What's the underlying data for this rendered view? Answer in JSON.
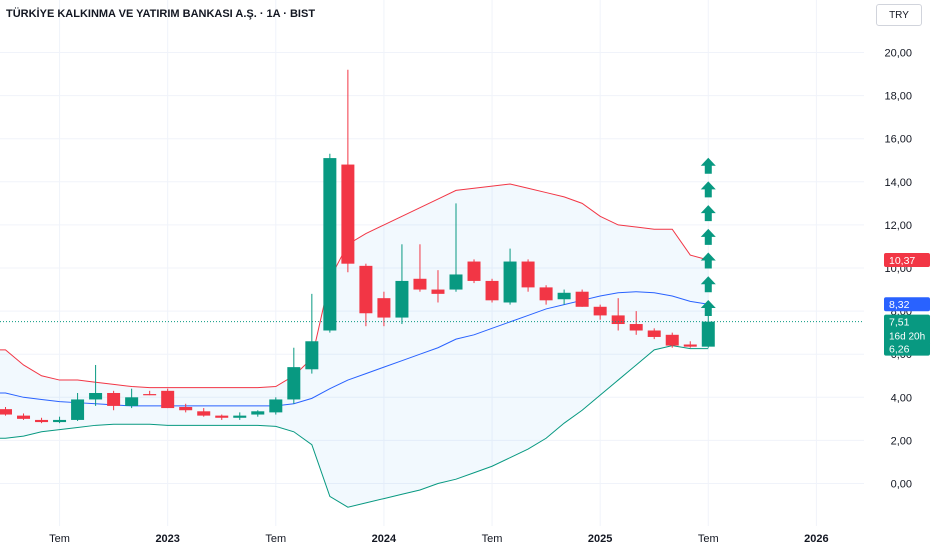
{
  "header": {
    "symbol_title": "TÜRKİYE KALKINMA VE YATIRIM BANKASI A.Ş. · 1A · BIST",
    "currency": "TRY"
  },
  "colors": {
    "up": "#089981",
    "down": "#f23645",
    "basis": "#2962ff",
    "upper_band": "#f23645",
    "lower_band": "#089981",
    "band_fill": "#2196f3",
    "arrow": "#089981",
    "grid": "#f0f3fa",
    "axis_text": "#131722",
    "price_line": "#089981"
  },
  "chart_data": {
    "type": "candlestick",
    "interval": "1M",
    "ylim": [
      -1.2,
      21.5
    ],
    "y_ticks": [
      0,
      2,
      4,
      6,
      8,
      10,
      12,
      14,
      16,
      18,
      20
    ],
    "y_tick_labels": [
      "0,00",
      "2,00",
      "4,00",
      "6,00",
      "8,00",
      "10,00",
      "12,00",
      "14,00",
      "16,00",
      "18,00",
      "20,00"
    ],
    "x_ticks": [
      {
        "index": 3,
        "label": "Tem"
      },
      {
        "index": 9,
        "label": "2023"
      },
      {
        "index": 15,
        "label": "Tem"
      },
      {
        "index": 21,
        "label": "2024"
      },
      {
        "index": 27,
        "label": "Tem"
      },
      {
        "index": 33,
        "label": "2025"
      },
      {
        "index": 39,
        "label": "Tem"
      },
      {
        "index": 45,
        "label": "2026"
      }
    ],
    "x_range": [
      0.0,
      47.8
    ],
    "grid": true,
    "candles": [
      {
        "o": 3.45,
        "h": 3.55,
        "l": 3.15,
        "c": 3.2
      },
      {
        "o": 3.15,
        "h": 3.25,
        "l": 2.95,
        "c": 3.0
      },
      {
        "o": 2.95,
        "h": 3.05,
        "l": 2.8,
        "c": 2.85
      },
      {
        "o": 2.85,
        "h": 3.1,
        "l": 2.8,
        "c": 2.95
      },
      {
        "o": 2.95,
        "h": 4.2,
        "l": 2.9,
        "c": 3.9
      },
      {
        "o": 3.9,
        "h": 5.5,
        "l": 3.6,
        "c": 4.2
      },
      {
        "o": 4.2,
        "h": 4.3,
        "l": 3.4,
        "c": 3.6
      },
      {
        "o": 3.6,
        "h": 4.4,
        "l": 3.5,
        "c": 4.0
      },
      {
        "o": 4.15,
        "h": 4.3,
        "l": 4.1,
        "c": 4.1
      },
      {
        "o": 4.3,
        "h": 4.4,
        "l": 3.5,
        "c": 3.5
      },
      {
        "o": 3.55,
        "h": 3.7,
        "l": 3.3,
        "c": 3.4
      },
      {
        "o": 3.35,
        "h": 3.5,
        "l": 3.1,
        "c": 3.15
      },
      {
        "o": 3.15,
        "h": 3.2,
        "l": 2.95,
        "c": 3.05
      },
      {
        "o": 3.05,
        "h": 3.3,
        "l": 2.95,
        "c": 3.15
      },
      {
        "o": 3.2,
        "h": 3.4,
        "l": 3.1,
        "c": 3.35
      },
      {
        "o": 3.3,
        "h": 4.0,
        "l": 3.2,
        "c": 3.9
      },
      {
        "o": 3.9,
        "h": 6.3,
        "l": 3.7,
        "c": 5.4
      },
      {
        "o": 5.3,
        "h": 8.8,
        "l": 5.1,
        "c": 6.6
      },
      {
        "o": 7.1,
        "h": 15.3,
        "l": 7.0,
        "c": 15.1
      },
      {
        "o": 14.8,
        "h": 19.2,
        "l": 9.8,
        "c": 10.2
      },
      {
        "o": 10.1,
        "h": 10.2,
        "l": 7.3,
        "c": 7.9
      },
      {
        "o": 8.6,
        "h": 8.9,
        "l": 7.3,
        "c": 7.7
      },
      {
        "o": 7.7,
        "h": 11.1,
        "l": 7.4,
        "c": 9.4
      },
      {
        "o": 9.5,
        "h": 11.1,
        "l": 8.9,
        "c": 9.0
      },
      {
        "o": 9.0,
        "h": 9.9,
        "l": 8.4,
        "c": 8.8
      },
      {
        "o": 9.0,
        "h": 13.0,
        "l": 8.9,
        "c": 9.7
      },
      {
        "o": 10.3,
        "h": 10.4,
        "l": 9.3,
        "c": 9.4
      },
      {
        "o": 9.4,
        "h": 9.5,
        "l": 8.4,
        "c": 8.5
      },
      {
        "o": 8.4,
        "h": 10.9,
        "l": 8.3,
        "c": 10.3
      },
      {
        "o": 10.3,
        "h": 10.4,
        "l": 8.9,
        "c": 9.1
      },
      {
        "o": 9.1,
        "h": 9.2,
        "l": 8.3,
        "c": 8.5
      },
      {
        "o": 8.55,
        "h": 9.0,
        "l": 8.3,
        "c": 8.85
      },
      {
        "o": 8.9,
        "h": 9.0,
        "l": 8.2,
        "c": 8.2
      },
      {
        "o": 8.2,
        "h": 8.3,
        "l": 7.6,
        "c": 7.8
      },
      {
        "o": 7.8,
        "h": 8.6,
        "l": 7.1,
        "c": 7.4
      },
      {
        "o": 7.4,
        "h": 8.0,
        "l": 6.9,
        "c": 7.1
      },
      {
        "o": 7.1,
        "h": 7.2,
        "l": 6.7,
        "c": 6.8
      },
      {
        "o": 6.9,
        "h": 7.0,
        "l": 6.3,
        "c": 6.4
      },
      {
        "o": 6.45,
        "h": 6.6,
        "l": 6.3,
        "c": 6.35
      },
      {
        "o": 6.35,
        "h": 7.8,
        "l": 6.3,
        "c": 7.51
      }
    ],
    "bollinger": {
      "x": [
        -3,
        0,
        1,
        2,
        3,
        4,
        5,
        6,
        7,
        8,
        9,
        10,
        11,
        12,
        13,
        14,
        15,
        16,
        17,
        18,
        19,
        20,
        21,
        22,
        23,
        24,
        25,
        26,
        27,
        28,
        29,
        30,
        31,
        32,
        33,
        34,
        35,
        36,
        37,
        38,
        39
      ],
      "upper": [
        6.2,
        6.2,
        5.5,
        5.0,
        4.8,
        4.8,
        4.7,
        4.6,
        4.5,
        4.45,
        4.45,
        4.45,
        4.45,
        4.45,
        4.45,
        4.45,
        4.5,
        5.0,
        5.8,
        9.5,
        11.1,
        11.6,
        12.0,
        12.4,
        12.8,
        13.2,
        13.6,
        13.7,
        13.8,
        13.9,
        13.7,
        13.5,
        13.3,
        13.0,
        12.4,
        12.0,
        11.9,
        11.8,
        11.8,
        10.6,
        10.37
      ],
      "basis": [
        4.2,
        4.2,
        4.0,
        3.9,
        3.8,
        3.75,
        3.7,
        3.65,
        3.6,
        3.6,
        3.6,
        3.6,
        3.6,
        3.6,
        3.6,
        3.6,
        3.6,
        3.7,
        3.95,
        4.4,
        4.8,
        5.1,
        5.4,
        5.7,
        6.0,
        6.3,
        6.7,
        6.9,
        7.2,
        7.5,
        7.8,
        8.1,
        8.3,
        8.5,
        8.7,
        8.85,
        8.9,
        8.85,
        8.7,
        8.45,
        8.32
      ],
      "lower": [
        2.1,
        2.1,
        2.2,
        2.4,
        2.5,
        2.6,
        2.7,
        2.75,
        2.75,
        2.75,
        2.7,
        2.7,
        2.7,
        2.7,
        2.7,
        2.7,
        2.65,
        2.4,
        1.8,
        -0.6,
        -1.1,
        -0.9,
        -0.7,
        -0.5,
        -0.3,
        0.0,
        0.2,
        0.5,
        0.8,
        1.2,
        1.6,
        2.1,
        2.8,
        3.4,
        4.1,
        4.8,
        5.5,
        6.2,
        6.4,
        6.26,
        6.26
      ]
    },
    "arrows": [
      {
        "x": 39,
        "y": 14.7
      },
      {
        "x": 39,
        "y": 13.6
      },
      {
        "x": 39,
        "y": 12.5
      },
      {
        "x": 39,
        "y": 11.4
      },
      {
        "x": 39,
        "y": 10.3
      },
      {
        "x": 39,
        "y": 9.2
      },
      {
        "x": 39,
        "y": 8.1
      }
    ],
    "last_price": 7.51,
    "price_labels": [
      {
        "value": 10.37,
        "text": "10,37",
        "color": "#f23645"
      },
      {
        "value": 8.32,
        "text": "8,32",
        "color": "#2962ff"
      },
      {
        "value": 7.51,
        "text": "7,51",
        "sub": "16d 20h",
        "color": "#089981"
      },
      {
        "value": 6.26,
        "text": "6,26",
        "color": "#089981"
      }
    ]
  }
}
